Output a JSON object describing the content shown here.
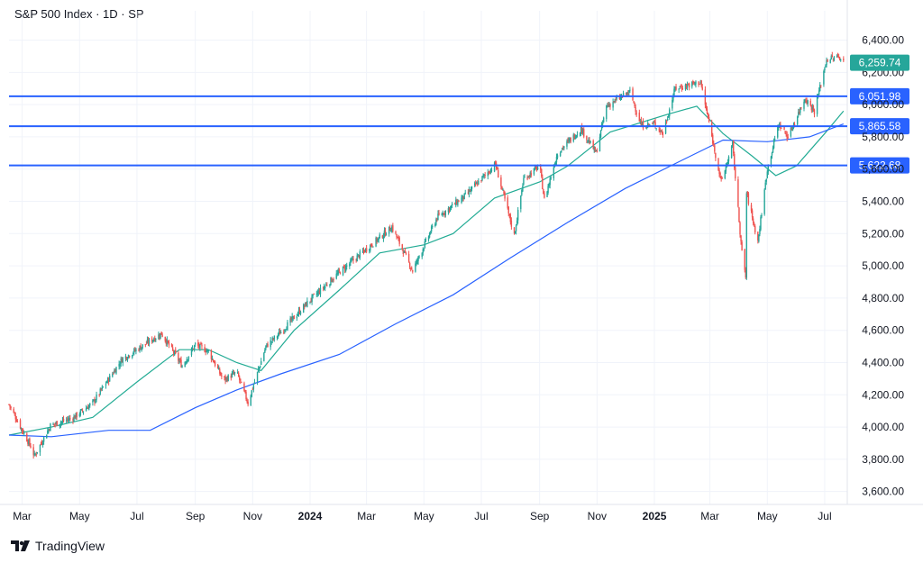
{
  "header": {
    "title": "S&P 500 Index · 1D · SP"
  },
  "footer": {
    "brand": "TradingView"
  },
  "colors": {
    "up": "#26a69a",
    "down": "#ef5350",
    "ma_fast": "#22ab94",
    "ma_slow": "#2962ff",
    "level_line": "#2962ff",
    "last_price_badge": "#26a69a",
    "grid": "#f0f3fa",
    "axis_text": "#131722"
  },
  "chart_data": {
    "type": "candlestick",
    "x_range": [
      "2023-02-15",
      "2025-07-25"
    ],
    "y_range": [
      3520,
      6470
    ],
    "grid": true,
    "y_ticks": [
      "3,600.00",
      "3,800.00",
      "4,000.00",
      "4,200.00",
      "4,400.00",
      "4,600.00",
      "4,800.00",
      "5,000.00",
      "5,200.00",
      "5,400.00",
      "5,600.00",
      "5,800.00",
      "6,000.00",
      "6,200.00",
      "6,400.00"
    ],
    "x_ticks": [
      {
        "date": "2023-03-01",
        "label": "Mar",
        "bold": false
      },
      {
        "date": "2023-05-01",
        "label": "May",
        "bold": false
      },
      {
        "date": "2023-07-01",
        "label": "Jul",
        "bold": false
      },
      {
        "date": "2023-09-01",
        "label": "Sep",
        "bold": false
      },
      {
        "date": "2023-11-01",
        "label": "Nov",
        "bold": false
      },
      {
        "date": "2024-01-01",
        "label": "2024",
        "bold": true
      },
      {
        "date": "2024-03-01",
        "label": "Mar",
        "bold": false
      },
      {
        "date": "2024-05-01",
        "label": "May",
        "bold": false
      },
      {
        "date": "2024-07-01",
        "label": "Jul",
        "bold": false
      },
      {
        "date": "2024-09-01",
        "label": "Sep",
        "bold": false
      },
      {
        "date": "2024-11-01",
        "label": "Nov",
        "bold": false
      },
      {
        "date": "2025-01-01",
        "label": "2025",
        "bold": true
      },
      {
        "date": "2025-03-01",
        "label": "Mar",
        "bold": false
      },
      {
        "date": "2025-05-01",
        "label": "May",
        "bold": false
      },
      {
        "date": "2025-07-01",
        "label": "Jul",
        "bold": false
      }
    ],
    "price_path": [
      [
        "2023-02-15",
        4140
      ],
      [
        "2023-03-10",
        3880
      ],
      [
        "2023-03-14",
        3820
      ],
      [
        "2023-03-31",
        4010
      ],
      [
        "2023-04-25",
        4060
      ],
      [
        "2023-05-15",
        4150
      ],
      [
        "2023-06-15",
        4420
      ],
      [
        "2023-07-27",
        4580
      ],
      [
        "2023-08-18",
        4380
      ],
      [
        "2023-09-01",
        4510
      ],
      [
        "2023-09-15",
        4470
      ],
      [
        "2023-10-01",
        4290
      ],
      [
        "2023-10-15",
        4340
      ],
      [
        "2023-10-27",
        4150
      ],
      [
        "2023-11-15",
        4500
      ],
      [
        "2023-12-01",
        4590
      ],
      [
        "2023-12-29",
        4770
      ],
      [
        "2024-02-01",
        4960
      ],
      [
        "2024-03-28",
        5240
      ],
      [
        "2024-04-19",
        4970
      ],
      [
        "2024-05-15",
        5300
      ],
      [
        "2024-06-15",
        5440
      ],
      [
        "2024-07-16",
        5630
      ],
      [
        "2024-08-05",
        5190
      ],
      [
        "2024-08-15",
        5540
      ],
      [
        "2024-09-01",
        5620
      ],
      [
        "2024-09-06",
        5410
      ],
      [
        "2024-09-20",
        5700
      ],
      [
        "2024-10-15",
        5850
      ],
      [
        "2024-10-31",
        5700
      ],
      [
        "2024-11-11",
        5990
      ],
      [
        "2024-12-06",
        6080
      ],
      [
        "2024-12-18",
        5870
      ],
      [
        "2025-01-01",
        5880
      ],
      [
        "2025-01-10",
        5820
      ],
      [
        "2025-01-23",
        6100
      ],
      [
        "2025-02-19",
        6140
      ],
      [
        "2025-03-13",
        5520
      ],
      [
        "2025-03-25",
        5750
      ],
      [
        "2025-04-04",
        5080
      ],
      [
        "2025-04-08",
        4930
      ],
      [
        "2025-04-09",
        5450
      ],
      [
        "2025-04-21",
        5150
      ],
      [
        "2025-05-01",
        5600
      ],
      [
        "2025-05-13",
        5880
      ],
      [
        "2025-05-23",
        5800
      ],
      [
        "2025-06-10",
        6040
      ],
      [
        "2025-06-20",
        5960
      ],
      [
        "2025-07-03",
        6280
      ],
      [
        "2025-07-18",
        6297
      ],
      [
        "2025-07-21",
        6259.74
      ]
    ],
    "series": [
      {
        "name": "",
        "kind": "moving-average-fast",
        "color": "#22ab94",
        "points": [
          [
            "2023-02-15",
            3950
          ],
          [
            "2023-04-01",
            4000
          ],
          [
            "2023-05-15",
            4060
          ],
          [
            "2023-07-01",
            4280
          ],
          [
            "2023-08-15",
            4480
          ],
          [
            "2023-09-15",
            4480
          ],
          [
            "2023-10-15",
            4400
          ],
          [
            "2023-11-10",
            4350
          ],
          [
            "2023-12-15",
            4600
          ],
          [
            "2024-02-01",
            4850
          ],
          [
            "2024-03-15",
            5080
          ],
          [
            "2024-05-01",
            5130
          ],
          [
            "2024-06-01",
            5200
          ],
          [
            "2024-07-15",
            5420
          ],
          [
            "2024-09-01",
            5520
          ],
          [
            "2024-10-01",
            5620
          ],
          [
            "2024-11-15",
            5830
          ],
          [
            "2025-01-15",
            5940
          ],
          [
            "2025-02-15",
            5990
          ],
          [
            "2025-03-15",
            5820
          ],
          [
            "2025-04-15",
            5680
          ],
          [
            "2025-05-10",
            5560
          ],
          [
            "2025-06-01",
            5620
          ],
          [
            "2025-07-01",
            5820
          ],
          [
            "2025-07-21",
            5960
          ]
        ]
      },
      {
        "name": "",
        "kind": "moving-average-slow",
        "color": "#2962ff",
        "points": [
          [
            "2023-02-15",
            3950
          ],
          [
            "2023-04-01",
            3940
          ],
          [
            "2023-06-01",
            3980
          ],
          [
            "2023-07-15",
            3980
          ],
          [
            "2023-09-01",
            4120
          ],
          [
            "2023-10-15",
            4230
          ],
          [
            "2023-12-01",
            4330
          ],
          [
            "2024-02-01",
            4450
          ],
          [
            "2024-04-01",
            4640
          ],
          [
            "2024-06-01",
            4820
          ],
          [
            "2024-08-01",
            5050
          ],
          [
            "2024-10-01",
            5270
          ],
          [
            "2024-12-01",
            5480
          ],
          [
            "2025-02-01",
            5660
          ],
          [
            "2025-03-15",
            5780
          ],
          [
            "2025-05-01",
            5770
          ],
          [
            "2025-06-15",
            5800
          ],
          [
            "2025-07-21",
            5880
          ]
        ]
      }
    ],
    "horizontal_levels": [
      {
        "label": "6,051.98",
        "value": 6051.98
      },
      {
        "label": "5,865.58",
        "value": 5865.58
      },
      {
        "label": "5,622.68",
        "value": 5622.68
      }
    ],
    "last_price": {
      "label": "6,259.74",
      "value": 6259.74
    }
  }
}
